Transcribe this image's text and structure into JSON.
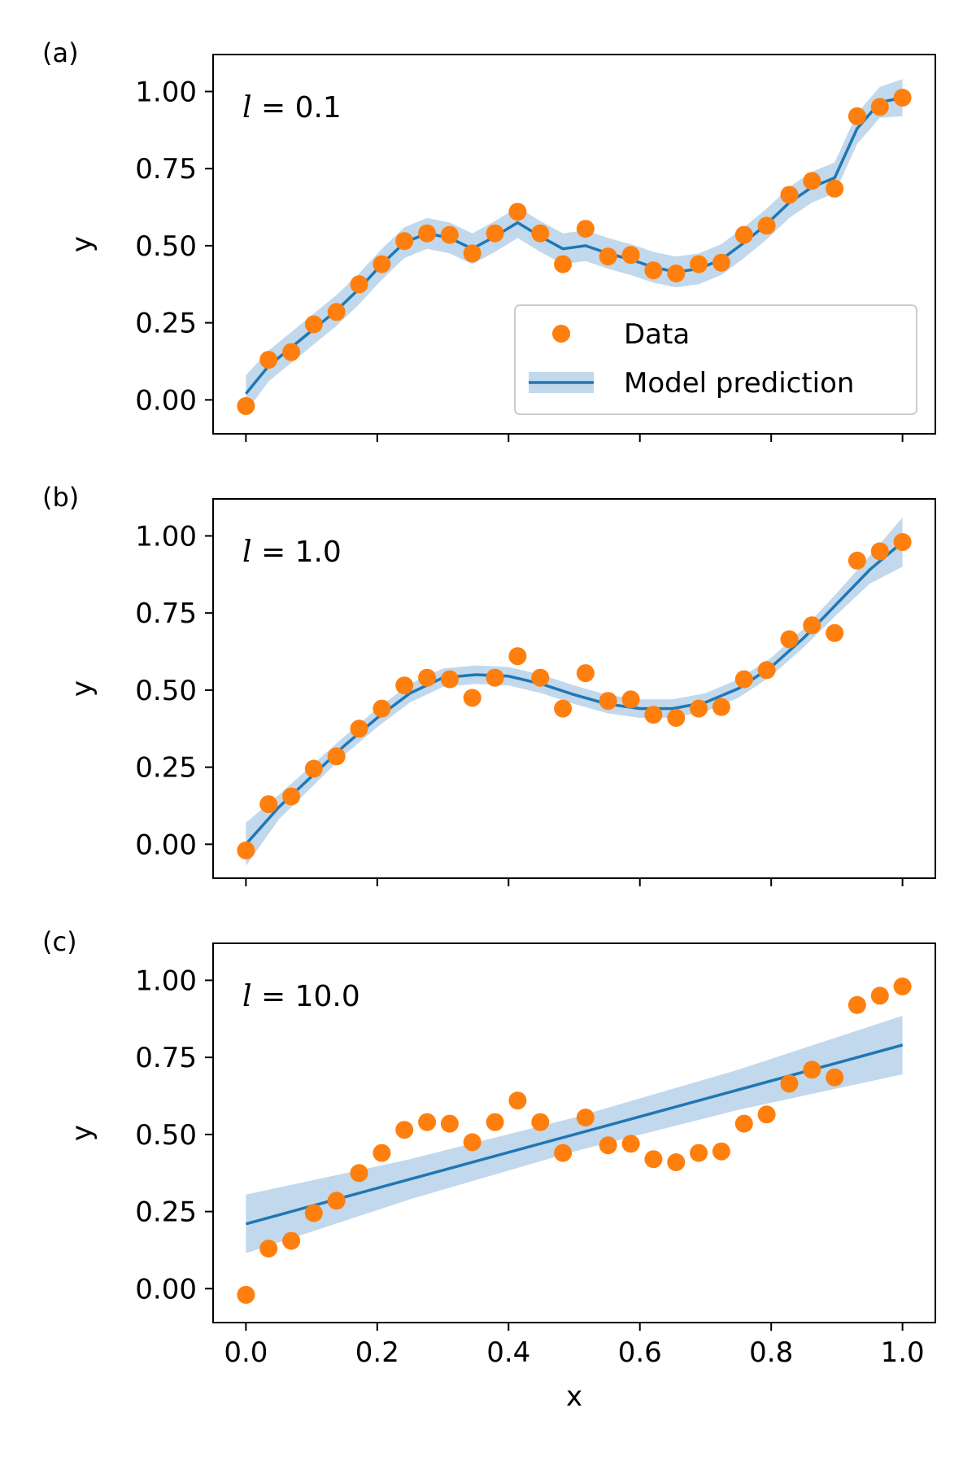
{
  "colors": {
    "data": "#ff7f0e",
    "model": "#1f77b4",
    "band": "#aecbe6"
  },
  "legend": {
    "data_label": "Data",
    "model_label": "Model prediction"
  },
  "chart_data": [
    {
      "type": "scatter",
      "panel_label": "(a)",
      "annotation_symbol": "l",
      "annotation_value": "= 0.1",
      "xlabel": "",
      "ylabel": "y",
      "xlim": [
        -0.05,
        1.05
      ],
      "ylim": [
        -0.11,
        1.12
      ],
      "xticks": [
        "0.0",
        "0.2",
        "0.4",
        "0.6",
        "0.8",
        "1.0"
      ],
      "yticks": [
        "0.00",
        "0.25",
        "0.50",
        "0.75",
        "1.00"
      ],
      "legend_position": "lower-right",
      "series": [
        {
          "name": "Data",
          "x": [
            0.0,
            0.0345,
            0.069,
            0.1034,
            0.1379,
            0.1724,
            0.2069,
            0.2414,
            0.2759,
            0.3103,
            0.3448,
            0.3793,
            0.4138,
            0.4483,
            0.4828,
            0.5172,
            0.5517,
            0.5862,
            0.6207,
            0.6552,
            0.6897,
            0.7241,
            0.7586,
            0.7931,
            0.8276,
            0.8621,
            0.8966,
            0.931,
            0.9655,
            1.0
          ],
          "y": [
            -0.02,
            0.13,
            0.155,
            0.245,
            0.285,
            0.375,
            0.44,
            0.515,
            0.54,
            0.535,
            0.475,
            0.54,
            0.61,
            0.54,
            0.44,
            0.555,
            0.465,
            0.47,
            0.42,
            0.41,
            0.44,
            0.445,
            0.535,
            0.565,
            0.665,
            0.71,
            0.685,
            0.92,
            0.95,
            0.98
          ]
        },
        {
          "name": "Model prediction",
          "x": [
            0.0,
            0.0345,
            0.069,
            0.1034,
            0.1379,
            0.1724,
            0.2069,
            0.2414,
            0.2759,
            0.3103,
            0.3448,
            0.3793,
            0.4138,
            0.4483,
            0.4828,
            0.5172,
            0.5517,
            0.5862,
            0.6207,
            0.6552,
            0.6897,
            0.7241,
            0.7586,
            0.7931,
            0.8276,
            0.8621,
            0.8966,
            0.931,
            0.9655,
            1.0
          ],
          "y": [
            0.02,
            0.11,
            0.17,
            0.23,
            0.29,
            0.36,
            0.44,
            0.51,
            0.54,
            0.525,
            0.49,
            0.53,
            0.575,
            0.53,
            0.49,
            0.5,
            0.475,
            0.455,
            0.43,
            0.415,
            0.425,
            0.455,
            0.51,
            0.57,
            0.64,
            0.69,
            0.72,
            0.88,
            0.965,
            0.98
          ],
          "band": [
            0.06,
            0.05,
            0.05,
            0.05,
            0.05,
            0.05,
            0.05,
            0.05,
            0.05,
            0.05,
            0.05,
            0.05,
            0.05,
            0.05,
            0.05,
            0.05,
            0.05,
            0.05,
            0.05,
            0.05,
            0.05,
            0.05,
            0.05,
            0.05,
            0.05,
            0.05,
            0.05,
            0.05,
            0.05,
            0.06
          ]
        }
      ]
    },
    {
      "type": "scatter",
      "panel_label": "(b)",
      "annotation_symbol": "l",
      "annotation_value": "= 1.0",
      "xlabel": "",
      "ylabel": "y",
      "xlim": [
        -0.05,
        1.05
      ],
      "ylim": [
        -0.11,
        1.12
      ],
      "xticks": [
        "0.0",
        "0.2",
        "0.4",
        "0.6",
        "0.8",
        "1.0"
      ],
      "yticks": [
        "0.00",
        "0.25",
        "0.50",
        "0.75",
        "1.00"
      ],
      "series": [
        {
          "name": "Data",
          "x": [
            0.0,
            0.0345,
            0.069,
            0.1034,
            0.1379,
            0.1724,
            0.2069,
            0.2414,
            0.2759,
            0.3103,
            0.3448,
            0.3793,
            0.4138,
            0.4483,
            0.4828,
            0.5172,
            0.5517,
            0.5862,
            0.6207,
            0.6552,
            0.6897,
            0.7241,
            0.7586,
            0.7931,
            0.8276,
            0.8621,
            0.8966,
            0.931,
            0.9655,
            1.0
          ],
          "y": [
            -0.02,
            0.13,
            0.155,
            0.245,
            0.285,
            0.375,
            0.44,
            0.515,
            0.54,
            0.535,
            0.475,
            0.54,
            0.61,
            0.54,
            0.44,
            0.555,
            0.465,
            0.47,
            0.42,
            0.41,
            0.44,
            0.445,
            0.535,
            0.565,
            0.665,
            0.71,
            0.685,
            0.92,
            0.95,
            0.98
          ]
        },
        {
          "name": "Model prediction",
          "x": [
            0.0,
            0.05,
            0.1,
            0.15,
            0.2,
            0.25,
            0.3,
            0.35,
            0.4,
            0.45,
            0.5,
            0.55,
            0.6,
            0.65,
            0.7,
            0.75,
            0.8,
            0.85,
            0.9,
            0.95,
            1.0
          ],
          "y": [
            0.0,
            0.12,
            0.22,
            0.32,
            0.41,
            0.49,
            0.54,
            0.55,
            0.545,
            0.52,
            0.485,
            0.455,
            0.44,
            0.44,
            0.46,
            0.505,
            0.575,
            0.67,
            0.78,
            0.89,
            0.98
          ],
          "band": [
            0.07,
            0.04,
            0.035,
            0.03,
            0.03,
            0.03,
            0.03,
            0.03,
            0.03,
            0.03,
            0.03,
            0.03,
            0.03,
            0.03,
            0.03,
            0.03,
            0.03,
            0.03,
            0.035,
            0.045,
            0.08
          ]
        }
      ]
    },
    {
      "type": "scatter",
      "panel_label": "(c)",
      "annotation_symbol": "l",
      "annotation_value": "= 10.0",
      "xlabel": "x",
      "ylabel": "y",
      "xlim": [
        -0.05,
        1.05
      ],
      "ylim": [
        -0.11,
        1.12
      ],
      "xticks": [
        "0.0",
        "0.2",
        "0.4",
        "0.6",
        "0.8",
        "1.0"
      ],
      "yticks": [
        "0.00",
        "0.25",
        "0.50",
        "0.75",
        "1.00"
      ],
      "series": [
        {
          "name": "Data",
          "x": [
            0.0,
            0.0345,
            0.069,
            0.1034,
            0.1379,
            0.1724,
            0.2069,
            0.2414,
            0.2759,
            0.3103,
            0.3448,
            0.3793,
            0.4138,
            0.4483,
            0.4828,
            0.5172,
            0.5517,
            0.5862,
            0.6207,
            0.6552,
            0.6897,
            0.7241,
            0.7586,
            0.7931,
            0.8276,
            0.8621,
            0.8966,
            0.931,
            0.9655,
            1.0
          ],
          "y": [
            -0.02,
            0.13,
            0.155,
            0.245,
            0.285,
            0.375,
            0.44,
            0.515,
            0.54,
            0.535,
            0.475,
            0.54,
            0.61,
            0.54,
            0.44,
            0.555,
            0.465,
            0.47,
            0.42,
            0.41,
            0.44,
            0.445,
            0.535,
            0.565,
            0.665,
            0.71,
            0.685,
            0.92,
            0.95,
            0.98
          ]
        },
        {
          "name": "Model prediction",
          "x": [
            0.0,
            0.25,
            0.5,
            0.75,
            1.0
          ],
          "y": [
            0.21,
            0.355,
            0.5,
            0.645,
            0.79
          ],
          "band": [
            0.095,
            0.065,
            0.055,
            0.065,
            0.095
          ]
        }
      ]
    }
  ]
}
